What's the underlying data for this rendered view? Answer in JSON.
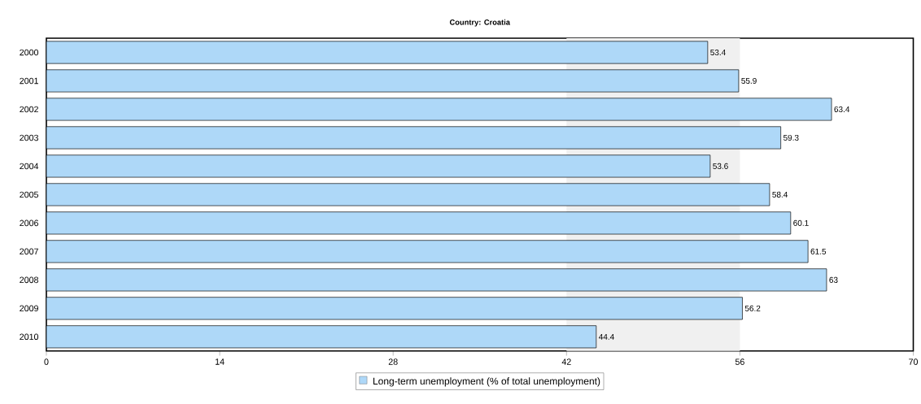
{
  "chart_data": {
    "type": "bar",
    "orientation": "horizontal",
    "title": "Country: Croatia",
    "categories": [
      "2000",
      "2001",
      "2002",
      "2003",
      "2004",
      "2005",
      "2006",
      "2007",
      "2008",
      "2009",
      "2010"
    ],
    "series": [
      {
        "name": "Long-term unemployment (% of total unemployment)",
        "color": "#aed8f8",
        "values": [
          53.4,
          55.9,
          63.4,
          59.3,
          53.6,
          58.4,
          60.1,
          61.5,
          63,
          56.2,
          44.4
        ]
      }
    ],
    "xlim": [
      0,
      70
    ],
    "xticks": [
      0,
      14,
      28,
      42,
      56,
      70
    ],
    "bands": [
      {
        "axis": "x",
        "from": 42,
        "to": 56,
        "color": "#f0f0f0"
      }
    ],
    "data_labels": true,
    "legend": "bottom",
    "grid": false
  }
}
